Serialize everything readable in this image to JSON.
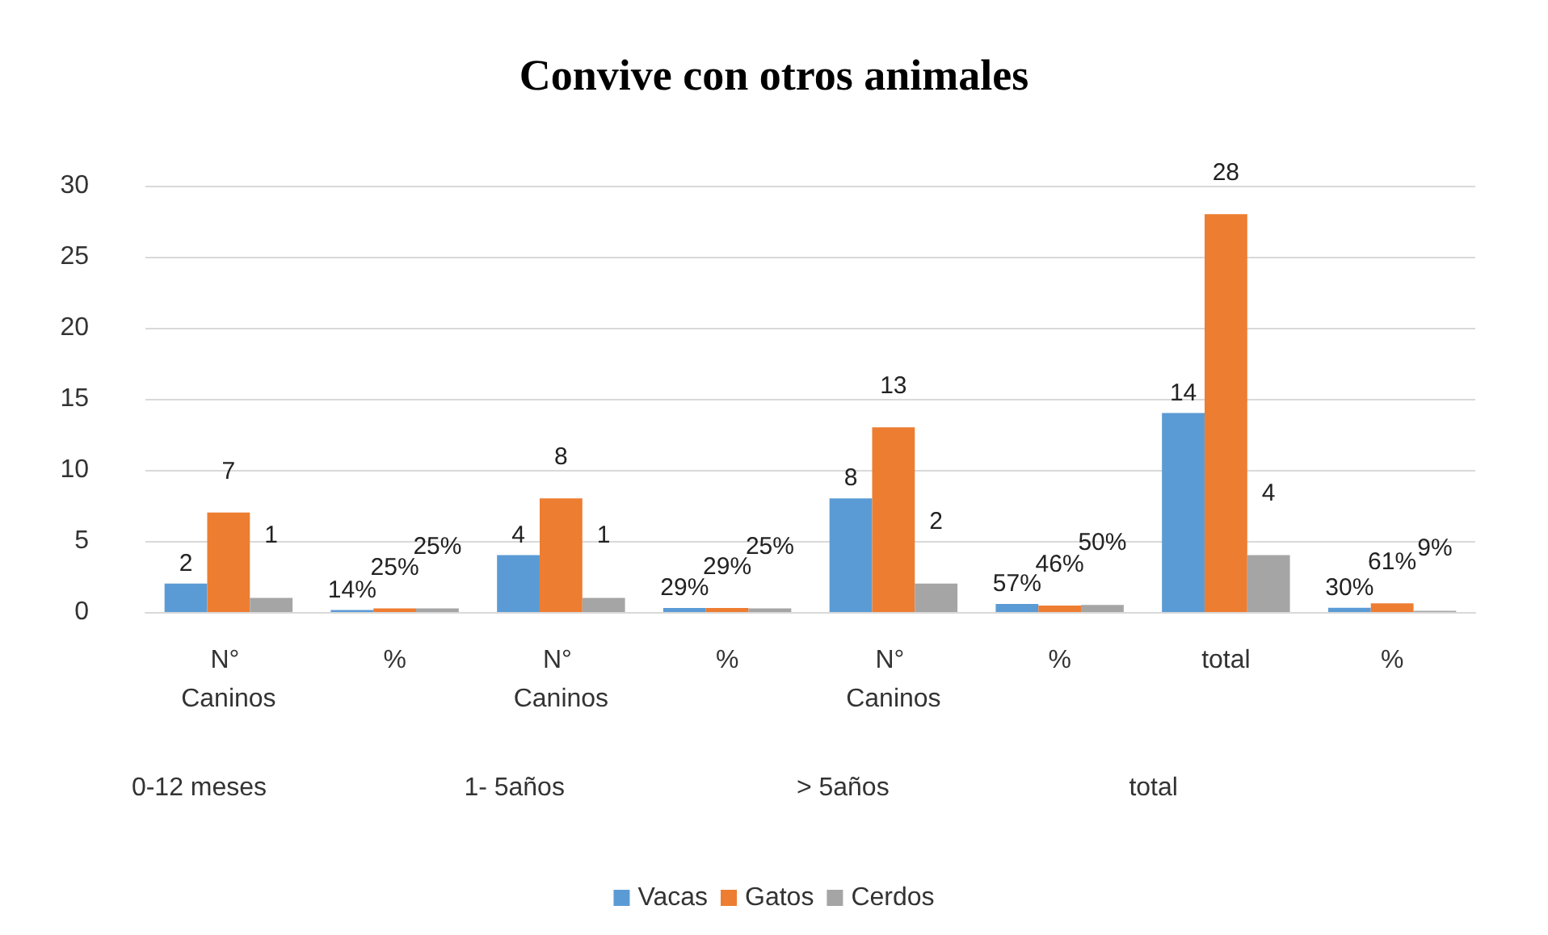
{
  "chart_data": {
    "type": "bar",
    "title": "Convive con otros animales",
    "categories": [
      "N° Caninos",
      "%",
      "N° Caninos",
      "%",
      "N° Caninos",
      "%",
      "total",
      "%"
    ],
    "series": [
      {
        "name": "Vacas",
        "color": "#5b9bd5",
        "values": [
          2,
          0.14,
          4,
          0.29,
          8,
          0.57,
          14,
          0.3
        ],
        "value_labels": [
          "2",
          "14%",
          "4",
          "29%",
          "8",
          "57%",
          "14",
          "30%"
        ]
      },
      {
        "name": "Gatos",
        "color": "#ed7d31",
        "values": [
          7,
          0.25,
          8,
          0.29,
          13,
          0.46,
          28,
          0.61
        ],
        "value_labels": [
          "7",
          "25%",
          "8",
          "29%",
          "13",
          "46%",
          "28",
          "61%"
        ]
      },
      {
        "name": "Cerdos",
        "color": "#a5a5a5",
        "values": [
          1,
          0.25,
          1,
          0.25,
          2,
          0.5,
          4,
          0.09
        ],
        "value_labels": [
          "1",
          "25%",
          "1",
          "25%",
          "2",
          "50%",
          "4",
          "9%"
        ]
      }
    ],
    "annotations": [
      "0-12 meses",
      "1- 5años",
      "> 5años",
      "total"
    ],
    "ylim": [
      0,
      30
    ],
    "yticks": [
      0,
      5,
      10,
      15,
      20,
      25,
      30
    ],
    "grid": "y",
    "legend": "bottom"
  }
}
